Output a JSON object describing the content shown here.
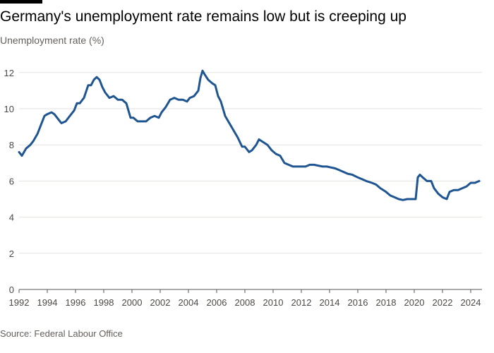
{
  "header": {
    "title": "Germany's unemployment rate remains low but is creeping up",
    "subtitle": "Unemployment rate (%)"
  },
  "footer": {
    "source": "Source: Federal Labour Office"
  },
  "colors": {
    "line": "#1f5591",
    "grid": "#e6e2de",
    "axis": "#5b5753",
    "tick_text": "#4c4845"
  },
  "chart_data": {
    "type": "line",
    "title": "Germany's unemployment rate remains low but is creeping up",
    "ylabel": "Unemployment rate (%)",
    "xlabel": "",
    "xlim": [
      1992,
      2024.8
    ],
    "ylim": [
      0,
      12.5
    ],
    "yticks": [
      0,
      2,
      4,
      6,
      8,
      10,
      12
    ],
    "xticks": [
      1992,
      1994,
      1996,
      1998,
      2000,
      2002,
      2004,
      2006,
      2008,
      2010,
      2012,
      2014,
      2016,
      2018,
      2020,
      2022,
      2024
    ],
    "grid": true,
    "legend": "none",
    "series": [
      {
        "x": [
          1992.0,
          1992.2,
          1992.5,
          1992.8,
          1993.0,
          1993.3,
          1993.5,
          1993.8,
          1994.0,
          1994.3,
          1994.5,
          1994.8,
          1995.0,
          1995.3,
          1995.6,
          1995.9,
          1996.1,
          1996.3,
          1996.6,
          1996.9,
          1997.1,
          1997.3,
          1997.5,
          1997.7,
          1997.9,
          1998.1,
          1998.4,
          1998.7,
          1999.0,
          1999.3,
          1999.6,
          1999.9,
          2000.1,
          2000.4,
          2000.7,
          2001.0,
          2001.3,
          2001.6,
          2001.9,
          2002.1,
          2002.4,
          2002.7,
          2003.0,
          2003.3,
          2003.6,
          2003.9,
          2004.1,
          2004.4,
          2004.7,
          2004.85,
          2005.0,
          2005.15,
          2005.4,
          2005.7,
          2005.9,
          2006.1,
          2006.3,
          2006.6,
          2006.9,
          2007.2,
          2007.5,
          2007.8,
          2008.0,
          2008.3,
          2008.5,
          2008.8,
          2009.0,
          2009.2,
          2009.4,
          2009.6,
          2009.9,
          2010.2,
          2010.5,
          2010.8,
          2011.1,
          2011.4,
          2011.7,
          2012.0,
          2012.3,
          2012.6,
          2012.9,
          2013.2,
          2013.5,
          2013.8,
          2014.1,
          2014.4,
          2014.7,
          2015.0,
          2015.3,
          2015.6,
          2016.0,
          2016.3,
          2016.6,
          2017.0,
          2017.3,
          2017.6,
          2018.0,
          2018.3,
          2018.6,
          2018.9,
          2019.2,
          2019.5,
          2019.8,
          2020.1,
          2020.25,
          2020.4,
          2020.6,
          2020.9,
          2021.2,
          2021.4,
          2021.7,
          2022.0,
          2022.3,
          2022.5,
          2022.8,
          2023.1,
          2023.4,
          2023.7,
          2024.0,
          2024.3,
          2024.6
        ],
        "values": [
          7.6,
          7.4,
          7.8,
          8.0,
          8.2,
          8.6,
          9.0,
          9.6,
          9.7,
          9.8,
          9.7,
          9.4,
          9.2,
          9.3,
          9.6,
          9.9,
          10.3,
          10.3,
          10.6,
          11.3,
          11.3,
          11.6,
          11.75,
          11.6,
          11.2,
          10.9,
          10.6,
          10.7,
          10.5,
          10.5,
          10.3,
          9.5,
          9.5,
          9.3,
          9.3,
          9.3,
          9.5,
          9.6,
          9.5,
          9.8,
          10.1,
          10.5,
          10.6,
          10.5,
          10.5,
          10.4,
          10.6,
          10.7,
          11.0,
          11.7,
          12.1,
          11.9,
          11.6,
          11.4,
          11.3,
          10.7,
          10.4,
          9.6,
          9.2,
          8.8,
          8.4,
          7.9,
          7.9,
          7.6,
          7.7,
          8.0,
          8.3,
          8.2,
          8.1,
          8.0,
          7.7,
          7.5,
          7.4,
          7.0,
          6.9,
          6.8,
          6.8,
          6.8,
          6.8,
          6.9,
          6.9,
          6.85,
          6.8,
          6.8,
          6.75,
          6.7,
          6.6,
          6.5,
          6.4,
          6.35,
          6.2,
          6.1,
          6.0,
          5.9,
          5.8,
          5.6,
          5.4,
          5.2,
          5.1,
          5.0,
          4.95,
          5.0,
          5.0,
          5.0,
          6.2,
          6.35,
          6.2,
          6.0,
          6.0,
          5.6,
          5.3,
          5.1,
          5.0,
          5.4,
          5.5,
          5.5,
          5.6,
          5.7,
          5.9,
          5.9,
          6.0
        ]
      }
    ]
  }
}
